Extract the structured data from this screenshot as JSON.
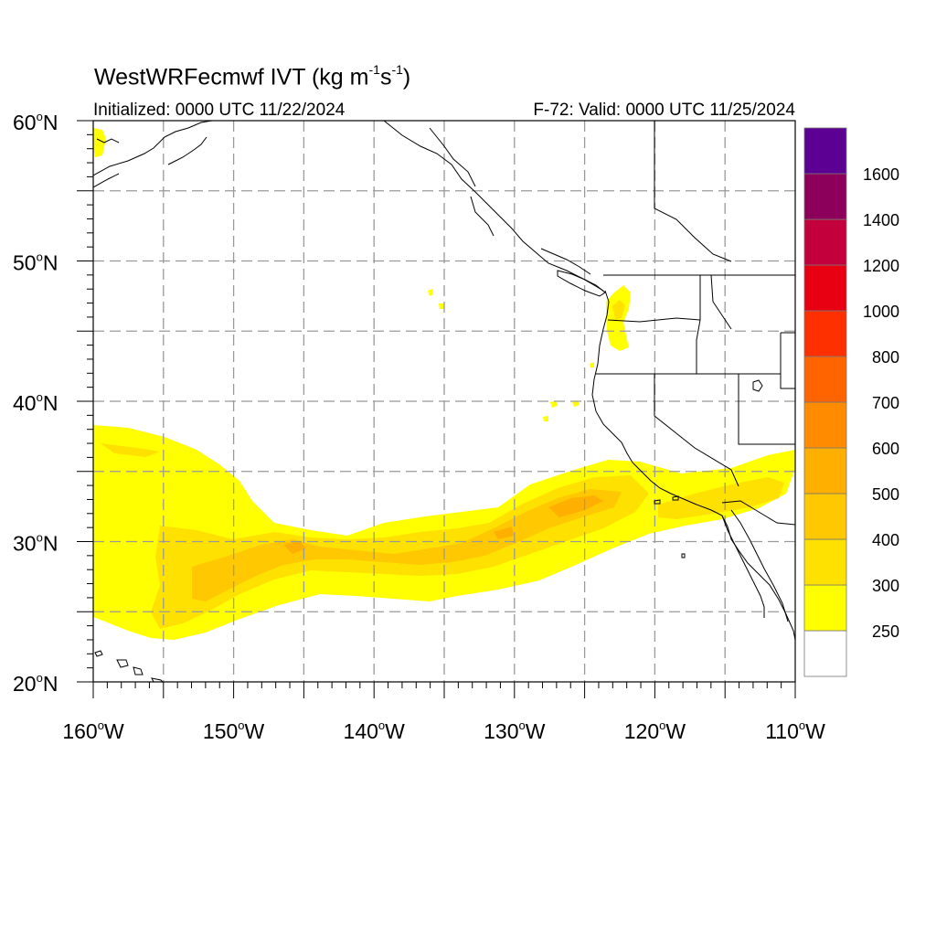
{
  "title": {
    "prefix": "WestWRFecmwf IVT (kg m",
    "exp1": "-1",
    "mid": "s",
    "exp2": "-1",
    "suffix": ")"
  },
  "init_text": "Initialized: 0000 UTC 11/22/2024",
  "valid_text": "F-72: Valid: 0000 UTC 11/25/2024",
  "lat_labels": [
    {
      "value": 60,
      "text": "60"
    },
    {
      "value": 50,
      "text": "50"
    },
    {
      "value": 40,
      "text": "40"
    },
    {
      "value": 30,
      "text": "30"
    },
    {
      "value": 20,
      "text": "20"
    }
  ],
  "lat_suffix": "N",
  "lon_labels": [
    {
      "value": -160,
      "text": "160"
    },
    {
      "value": -150,
      "text": "150"
    },
    {
      "value": -140,
      "text": "140"
    },
    {
      "value": -130,
      "text": "130"
    },
    {
      "value": -120,
      "text": "120"
    },
    {
      "value": -110,
      "text": "110"
    }
  ],
  "lon_suffix": "W",
  "degree_symbol": "o",
  "colorbar": {
    "levels": [
      250,
      300,
      400,
      500,
      600,
      700,
      800,
      1000,
      1200,
      1400,
      1600
    ],
    "labels": [
      "250",
      "300",
      "400",
      "500",
      "600",
      "700",
      "800",
      "1000",
      "1200",
      "1400",
      "1600"
    ],
    "colors": [
      "#ffffff",
      "#ffff00",
      "#ffe100",
      "#ffc800",
      "#ffaf00",
      "#ff8c00",
      "#ff6400",
      "#ff3000",
      "#e80012",
      "#c4003c",
      "#8c005c",
      "#5c0094"
    ]
  }
}
